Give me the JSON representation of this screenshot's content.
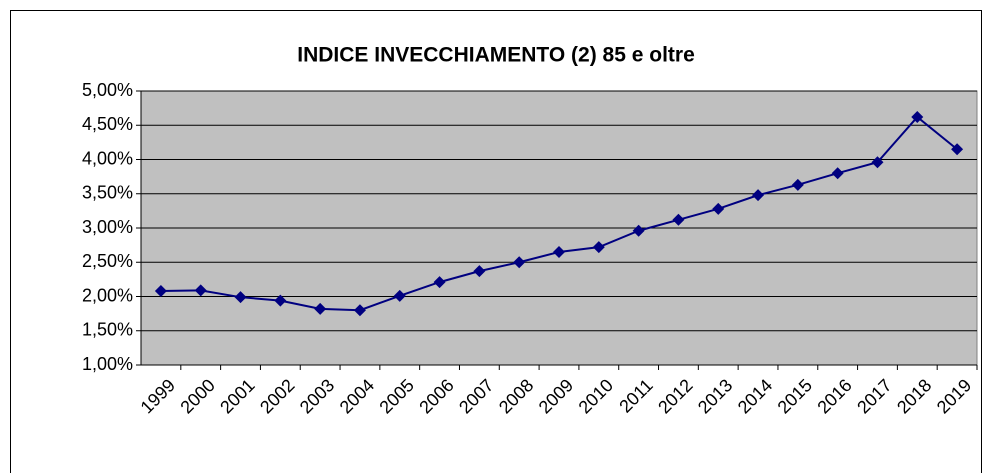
{
  "chart_data": {
    "type": "line",
    "title": "INDICE INVECCHIAMENTO (2) 85 e oltre",
    "categories": [
      "1999",
      "2000",
      "2001",
      "2002",
      "2003",
      "2004",
      "2005",
      "2006",
      "2007",
      "2008",
      "2009",
      "2010",
      "2011",
      "2012",
      "2013",
      "2014",
      "2015",
      "2016",
      "2017",
      "2018",
      "2019"
    ],
    "series": [
      {
        "name": "INDICE INVECCHIAMENTO (2) 85 e oltre",
        "color": "#000080",
        "values": [
          2.08,
          2.09,
          1.99,
          1.94,
          1.82,
          1.8,
          2.01,
          2.21,
          2.37,
          2.5,
          2.65,
          2.72,
          2.96,
          3.12,
          3.28,
          3.48,
          3.63,
          3.8,
          3.96,
          4.62,
          4.15
        ]
      }
    ],
    "ylim": [
      1,
      5
    ],
    "yticks": [
      {
        "value": 1,
        "label": "1,00%"
      },
      {
        "value": 1.5,
        "label": "1,50%"
      },
      {
        "value": 2,
        "label": "2,00%"
      },
      {
        "value": 2.5,
        "label": "2,50%"
      },
      {
        "value": 3,
        "label": "3,00%"
      },
      {
        "value": 3.5,
        "label": "3,50%"
      },
      {
        "value": 4,
        "label": "4,00%"
      },
      {
        "value": 4.5,
        "label": "4,50%"
      },
      {
        "value": 5,
        "label": "5,00%"
      }
    ],
    "grid": true,
    "plot_background": "#c0c0c0"
  }
}
